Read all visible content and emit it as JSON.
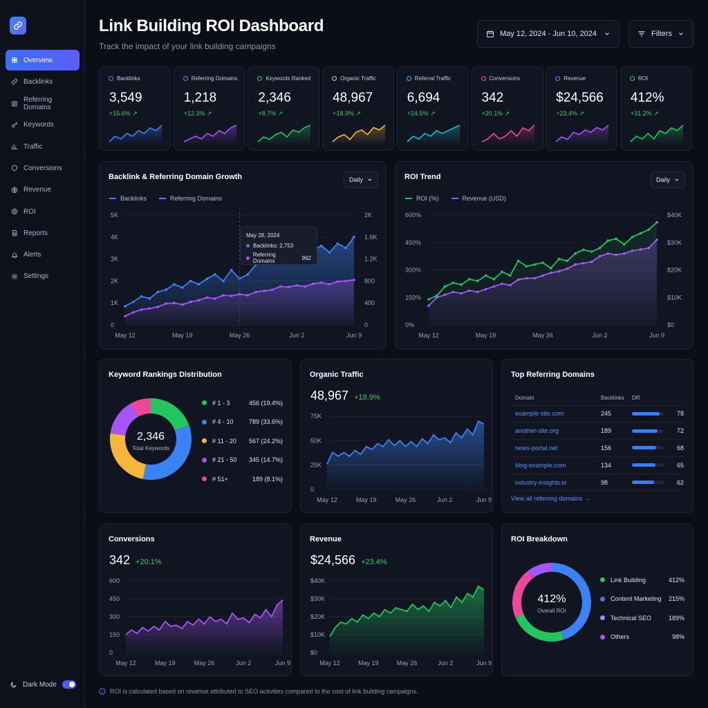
{
  "app": {
    "title": "Link Building ROI Dashboard",
    "subtitle": "Track the impact of your link building campaigns",
    "date_range": "May 12, 2024 - Jun 10, 2024",
    "filters_label": "Filters",
    "footnote": "ROI is calculated based on revenue attributed to SEO activities compared to the cost of link building campaigns."
  },
  "sidebar": {
    "items": [
      {
        "label": "Overview",
        "icon": "grid-icon",
        "active": true
      },
      {
        "label": "Backlinks",
        "icon": "link-icon"
      },
      {
        "label": "Referring Domains",
        "icon": "domain-icon"
      },
      {
        "label": "Keywords",
        "icon": "key-icon"
      },
      {
        "label": "Traffic",
        "icon": "traffic-icon"
      },
      {
        "label": "Conversions",
        "icon": "shield-icon"
      },
      {
        "label": "Revenue",
        "icon": "dollar-icon"
      },
      {
        "label": "ROI",
        "icon": "target-icon"
      },
      {
        "label": "Reports",
        "icon": "document-icon"
      },
      {
        "label": "Alerts",
        "icon": "bell-icon"
      },
      {
        "label": "Settings",
        "icon": "gear-icon"
      }
    ],
    "dark_mode_label": "Dark Mode"
  },
  "kpis": [
    {
      "label": "Backlinks",
      "value": "3,549",
      "change": "+15.6% ↗",
      "color": "#3b82f6",
      "spark": [
        3,
        5,
        4,
        6,
        5,
        7,
        6,
        8,
        7,
        9
      ]
    },
    {
      "label": "Referring Domains",
      "value": "1,218",
      "change": "+12.3% ↗",
      "color": "#a855f7",
      "spark": [
        3,
        4,
        5,
        4,
        6,
        5,
        7,
        6,
        8,
        9
      ]
    },
    {
      "label": "Keywords Ranked",
      "value": "2,346",
      "change": "+8.7% ↗",
      "color": "#22c55e",
      "spark": [
        2,
        4,
        3,
        5,
        6,
        4,
        7,
        6,
        8,
        9
      ]
    },
    {
      "label": "Organic Traffic",
      "value": "48,967",
      "change": "+18.9% ↗",
      "color": "#f5b73b",
      "spark": [
        2,
        4,
        5,
        3,
        6,
        7,
        5,
        8,
        7,
        9
      ]
    },
    {
      "label": "Referral Traffic",
      "value": "6,694",
      "change": "+24.5% ↗",
      "color": "#22b8cf",
      "spark": [
        3,
        5,
        4,
        6,
        5,
        7,
        6,
        7,
        8,
        9
      ]
    },
    {
      "label": "Conversions",
      "value": "342",
      "change": "+20.1% ↗",
      "color": "#ec4899",
      "spark": [
        3,
        4,
        6,
        4,
        5,
        7,
        5,
        8,
        7,
        9
      ]
    },
    {
      "label": "Revenue",
      "value": "$24,566",
      "change": "+23.4% ↗",
      "color": "#a855f7",
      "spark": [
        2,
        4,
        3,
        6,
        5,
        7,
        6,
        8,
        7,
        9
      ]
    },
    {
      "label": "ROI",
      "value": "412%",
      "change": "+31.2% ↗",
      "color": "#22c55e",
      "spark": [
        3,
        5,
        4,
        6,
        4,
        7,
        6,
        8,
        7,
        9
      ]
    }
  ],
  "growth": {
    "title": "Backlink & Referring Domain Growth",
    "period": "Daily",
    "legend": [
      "Backlinks",
      "Referring Domains"
    ],
    "tooltip": {
      "date": "May 28, 2024",
      "backlinks": "Backlinks: 2,753",
      "domains": "Referring Domains",
      "domains_value": "962"
    }
  },
  "roi_trend": {
    "title": "ROI Trend",
    "period": "Daily",
    "legend": [
      "ROI (%)",
      "Revenue (USD)"
    ]
  },
  "keyword_dist": {
    "title": "Keyword Rankings Distribution",
    "center_value": "2,346",
    "center_label": "Total Keywords",
    "rows": [
      {
        "label": "# 1 - 3",
        "value": "456 (19.4%)",
        "color": "#22c55e"
      },
      {
        "label": "# 4 - 10",
        "value": "789 (33.6%)",
        "color": "#3b82f6"
      },
      {
        "label": "# 11 - 20",
        "value": "567 (24.2%)",
        "color": "#f5b73b"
      },
      {
        "label": "# 21 - 50",
        "value": "345 (14.7%)",
        "color": "#a855f7"
      },
      {
        "label": "# 51+",
        "value": "189 (8.1%)",
        "color": "#ec4899"
      }
    ]
  },
  "organic": {
    "title": "Organic Traffic",
    "value": "48,967",
    "change": "+18.9%"
  },
  "top_domains": {
    "title": "Top Referring Domains",
    "headers": [
      "Domain",
      "Backlinks",
      "DR"
    ],
    "rows": [
      {
        "domain": "example-site.com",
        "backlinks": "245",
        "dr": "78"
      },
      {
        "domain": "another-site.org",
        "backlinks": "189",
        "dr": "72"
      },
      {
        "domain": "news-portal.net",
        "backlinks": "156",
        "dr": "68"
      },
      {
        "domain": "blog-example.com",
        "backlinks": "134",
        "dr": "65"
      },
      {
        "domain": "industry-insights.io",
        "backlinks": "98",
        "dr": "62"
      }
    ],
    "view_all": "View all referring domains →"
  },
  "conversions": {
    "title": "Conversions",
    "value": "342",
    "change": "+20.1%"
  },
  "revenue": {
    "title": "Revenue",
    "value": "$24,566",
    "change": "+23.4%"
  },
  "roi_breakdown": {
    "title": "ROI Breakdown",
    "center_value": "412%",
    "center_label": "Overall ROI",
    "rows": [
      {
        "label": "Link Building",
        "value": "412%",
        "color": "#22c55e"
      },
      {
        "label": "Content Marketing",
        "value": "215%",
        "color": "#6366f1"
      },
      {
        "label": "Technical SEO",
        "value": "189%",
        "color": "#8b94f5"
      },
      {
        "label": "Others",
        "value": "98%",
        "color": "#a855f7"
      }
    ]
  },
  "chart_data": [
    {
      "type": "area",
      "title": "Backlink & Referring Domain Growth",
      "x": [
        "May 12",
        "May 13",
        "May 14",
        "May 15",
        "May 16",
        "May 17",
        "May 18",
        "May 19",
        "May 20",
        "May 21",
        "May 22",
        "May 23",
        "May 24",
        "May 25",
        "May 26",
        "May 27",
        "May 28",
        "May 29",
        "May 30",
        "May 31",
        "Jun 1",
        "Jun 2",
        "Jun 3",
        "Jun 4",
        "Jun 5",
        "Jun 6",
        "Jun 7",
        "Jun 8",
        "Jun 9"
      ],
      "xticks": [
        "May 12",
        "May 19",
        "May 26",
        "Jun 2",
        "Jun 9"
      ],
      "yticks_left": [
        "0",
        "1K",
        "2K",
        "3K",
        "4K",
        "5K"
      ],
      "yticks_right": [
        "0",
        "400",
        "800",
        "1.2K",
        "1.6K",
        "2K"
      ],
      "ylim_left": [
        0,
        5000
      ],
      "ylim_right": [
        0,
        2000
      ],
      "series": [
        {
          "name": "Backlinks",
          "axis": "left",
          "color": "#3b82f6",
          "values": [
            850,
            1050,
            1300,
            1200,
            1500,
            1600,
            1850,
            1700,
            2000,
            1850,
            2100,
            2300,
            2000,
            2500,
            2100,
            2300,
            2753,
            2900,
            3200,
            3000,
            3100,
            3300,
            3050,
            3400,
            3600,
            3300,
            3700,
            3500,
            4000
          ]
        },
        {
          "name": "Referring Domains",
          "axis": "right",
          "color": "#a855f7",
          "values": [
            160,
            230,
            280,
            300,
            330,
            390,
            400,
            370,
            420,
            450,
            500,
            480,
            540,
            530,
            560,
            540,
            600,
            620,
            640,
            700,
            690,
            720,
            700,
            750,
            770,
            740,
            790,
            800,
            820
          ]
        }
      ]
    },
    {
      "type": "line",
      "title": "ROI Trend",
      "xticks": [
        "May 12",
        "May 19",
        "May 26",
        "Jun 2",
        "Jun 9"
      ],
      "yticks_left": [
        "0%",
        "150%",
        "300%",
        "450%",
        "600%"
      ],
      "yticks_right": [
        "$0",
        "$10K",
        "$20K",
        "$30K",
        "$40K"
      ],
      "ylim_left": [
        0,
        600
      ],
      "ylim_right": [
        0,
        40000
      ],
      "series": [
        {
          "name": "ROI (%)",
          "axis": "left",
          "color": "#22c55e",
          "values": [
            140,
            160,
            210,
            230,
            220,
            250,
            240,
            270,
            250,
            290,
            270,
            350,
            320,
            330,
            340,
            310,
            360,
            350,
            390,
            410,
            400,
            420,
            460,
            470,
            440,
            480,
            500,
            520,
            560
          ]
        },
        {
          "name": "Revenue (USD)",
          "axis": "right",
          "color": "#a855f7",
          "values": [
            7000,
            10000,
            11000,
            12000,
            11500,
            12500,
            12000,
            13000,
            14000,
            15000,
            14500,
            16500,
            17000,
            17000,
            18000,
            19000,
            19500,
            20500,
            22000,
            22500,
            23000,
            25000,
            26000,
            25500,
            26000,
            27000,
            27500,
            28000,
            31000
          ]
        }
      ]
    },
    {
      "type": "pie",
      "title": "Keyword Rankings Distribution",
      "categories": [
        "# 1 - 3",
        "# 4 - 10",
        "# 11 - 20",
        "# 21 - 50",
        "# 51+"
      ],
      "values": [
        456,
        789,
        567,
        345,
        189
      ]
    },
    {
      "type": "area",
      "title": "Organic Traffic",
      "xticks": [
        "May 12",
        "May 19",
        "May 26",
        "Jun 2",
        "Jun 9"
      ],
      "yticks": [
        "0",
        "25K",
        "50K",
        "75K"
      ],
      "ylim": [
        0,
        75000
      ],
      "series": [
        {
          "name": "Organic Traffic",
          "color": "#3b82f6",
          "values": [
            26000,
            38000,
            34000,
            38000,
            34000,
            40000,
            36000,
            44000,
            41000,
            47000,
            44000,
            51000,
            45000,
            50000,
            44000,
            49000,
            44000,
            52000,
            47000,
            56000,
            51000,
            53000,
            48000,
            58000,
            53000,
            62000,
            56000,
            70000,
            67000
          ]
        }
      ]
    },
    {
      "type": "area",
      "title": "Conversions",
      "xticks": [
        "May 12",
        "May 19",
        "May 26",
        "Jun 2",
        "Jun 9"
      ],
      "yticks": [
        "0",
        "150",
        "300",
        "450",
        "600"
      ],
      "ylim": [
        0,
        600
      ],
      "series": [
        {
          "name": "Conversions",
          "color": "#a855f7",
          "values": [
            150,
            190,
            160,
            210,
            180,
            220,
            190,
            260,
            220,
            230,
            200,
            260,
            230,
            280,
            240,
            300,
            260,
            280,
            240,
            330,
            280,
            290,
            250,
            320,
            290,
            360,
            300,
            400,
            440
          ]
        }
      ]
    },
    {
      "type": "area",
      "title": "Revenue",
      "xticks": [
        "May 12",
        "May 19",
        "May 26",
        "Jun 2",
        "Jun 9"
      ],
      "yticks": [
        "$0",
        "$10K",
        "$20K",
        "$30K",
        "$40K"
      ],
      "ylim": [
        0,
        40000
      ],
      "series": [
        {
          "name": "Revenue",
          "color": "#22c55e",
          "values": [
            9000,
            14000,
            17000,
            16000,
            19000,
            17000,
            21000,
            19000,
            22000,
            20000,
            24000,
            22000,
            25000,
            24000,
            23000,
            27000,
            24000,
            26000,
            23000,
            28000,
            26000,
            29000,
            25000,
            31000,
            28000,
            33000,
            31000,
            37000,
            35000
          ]
        }
      ]
    },
    {
      "type": "pie",
      "title": "ROI Breakdown",
      "categories": [
        "Link Building",
        "Content Marketing",
        "Technical SEO",
        "Others"
      ],
      "values": [
        412,
        215,
        189,
        98
      ]
    }
  ]
}
